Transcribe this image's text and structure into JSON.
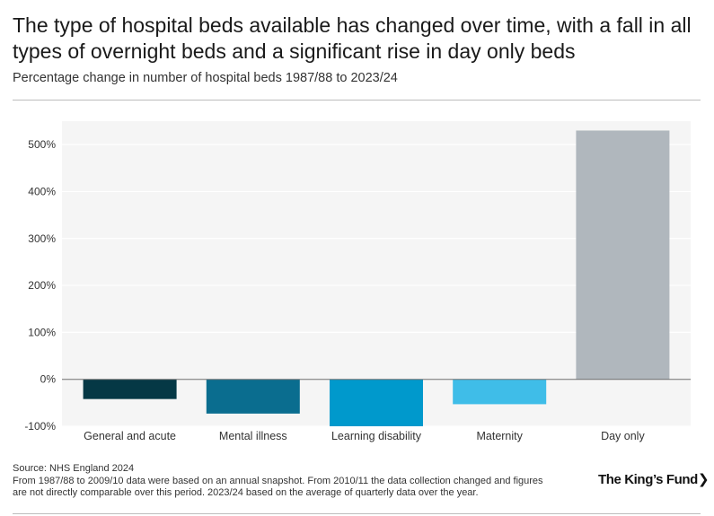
{
  "title": "The type of hospital beds available has changed over time, with a fall in all types of overnight beds and a significant rise in day only beds",
  "subtitle": "Percentage change in number of hospital beds 1987/88 to 2023/24",
  "chart_data": {
    "type": "bar",
    "title": "The type of hospital beds available has changed over time, with a fall in all types of overnight beds and a significant rise in day only beds",
    "subtitle": "Percentage change in number of hospital beds 1987/88 to 2023/24",
    "categories": [
      "General and acute",
      "Mental illness",
      "Learning disability",
      "Maternity",
      "Day only"
    ],
    "values": [
      -42,
      -73,
      -100,
      -53,
      530
    ],
    "unit": "%",
    "colors": [
      "#053845",
      "#0a6d8f",
      "#0099cc",
      "#3fbde8",
      "#b0b7bd"
    ],
    "ylim": [
      -100,
      550
    ],
    "yticks": [
      -100,
      0,
      100,
      200,
      300,
      400,
      500
    ],
    "ytick_labels": [
      "-100%",
      "0%",
      "100%",
      "200%",
      "300%",
      "400%",
      "500%"
    ],
    "xlabel": "",
    "ylabel": "",
    "grid": true,
    "background": "#f5f5f5",
    "gridline_color": "#ffffff"
  },
  "footer": {
    "source": "Source: NHS England 2024",
    "note_line1": "From 1987/88 to 2009/10 data were based on an annual snapshot. From 2010/11 the data collection changed and figures",
    "note_line2": "are not directly comparable over this period. 2023/24 based on the average of quarterly data over the year."
  },
  "brand": {
    "name": "The King’s Fund",
    "chevron": "❯"
  }
}
